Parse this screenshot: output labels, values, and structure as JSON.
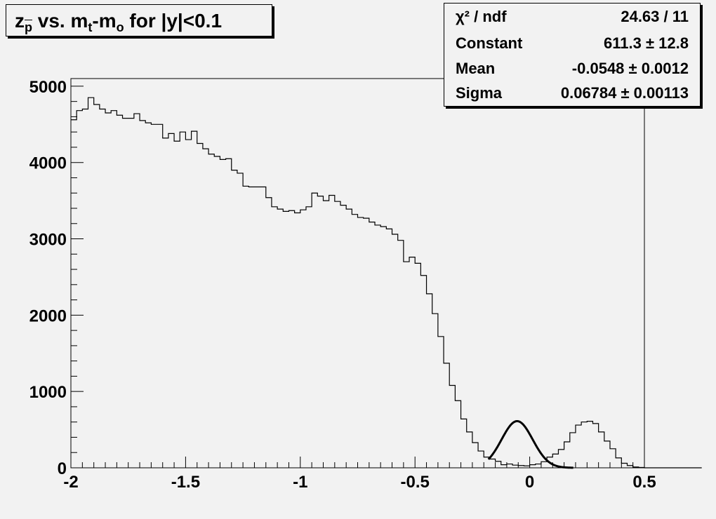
{
  "chart_data": {
    "type": "bar",
    "title_parts": {
      "z": "z",
      "z_sub": "p",
      "vs": " vs. m",
      "m_sub1": "t",
      "dash": "-m",
      "m_sub2": "o",
      "rest": " for |y|<0.1"
    },
    "xlabel": "",
    "ylabel": "",
    "xlim": [
      -2,
      0.5
    ],
    "ylim": [
      0,
      5100
    ],
    "x_ticks": [
      -2,
      -1.5,
      -1,
      -0.5,
      0,
      0.5
    ],
    "x_tick_labels": [
      "-2",
      "-1.5",
      "-1",
      "-0.5",
      "0",
      "0.5"
    ],
    "y_ticks": [
      0,
      1000,
      2000,
      3000,
      4000,
      5000
    ],
    "y_tick_labels": [
      "0",
      "1000",
      "2000",
      "3000",
      "4000",
      "5000"
    ],
    "grid": false,
    "bin_edges_start": -2.0,
    "bin_width": 0.025,
    "histogram_values": [
      4560,
      4680,
      4700,
      4850,
      4760,
      4700,
      4650,
      4680,
      4620,
      4580,
      4580,
      4640,
      4550,
      4520,
      4500,
      4500,
      4320,
      4380,
      4280,
      4400,
      4300,
      4410,
      4250,
      4180,
      4110,
      4080,
      4040,
      4050,
      3900,
      3860,
      3690,
      3680,
      3680,
      3680,
      3540,
      3420,
      3390,
      3360,
      3370,
      3340,
      3380,
      3420,
      3600,
      3560,
      3500,
      3570,
      3490,
      3440,
      3390,
      3320,
      3280,
      3270,
      3220,
      3180,
      3160,
      3130,
      3060,
      2980,
      2700,
      2760,
      2680,
      2520,
      2280,
      2020,
      1720,
      1370,
      1080,
      880,
      640,
      470,
      330,
      220,
      140,
      115,
      85,
      40,
      50,
      35,
      30,
      25,
      40,
      50,
      80,
      140,
      180,
      240,
      340,
      460,
      560,
      600,
      610,
      580,
      470,
      350,
      250,
      130,
      60,
      30,
      10,
      5,
      0,
      0,
      0,
      0,
      0,
      0,
      0,
      0,
      0,
      0
    ],
    "fit": {
      "type": "gaussian",
      "constant": 611.3,
      "mean": -0.0548,
      "sigma": 0.06784,
      "range": [
        -0.18,
        0.19
      ]
    },
    "legend_position": "top-right"
  },
  "stats": {
    "rows": [
      {
        "label": "χ² / ndf",
        "value": "24.63 / 11"
      },
      {
        "label": "Constant",
        "value": "611.3 ± 12.8"
      },
      {
        "label": "Mean",
        "value": "-0.0548 ± 0.0012"
      },
      {
        "label": "Sigma",
        "value": "0.06784 ± 0.00113"
      }
    ]
  },
  "colors": {
    "background": "#f2f2f2",
    "frame": "#000000",
    "histogram": "#000000",
    "fit": "#000000"
  }
}
